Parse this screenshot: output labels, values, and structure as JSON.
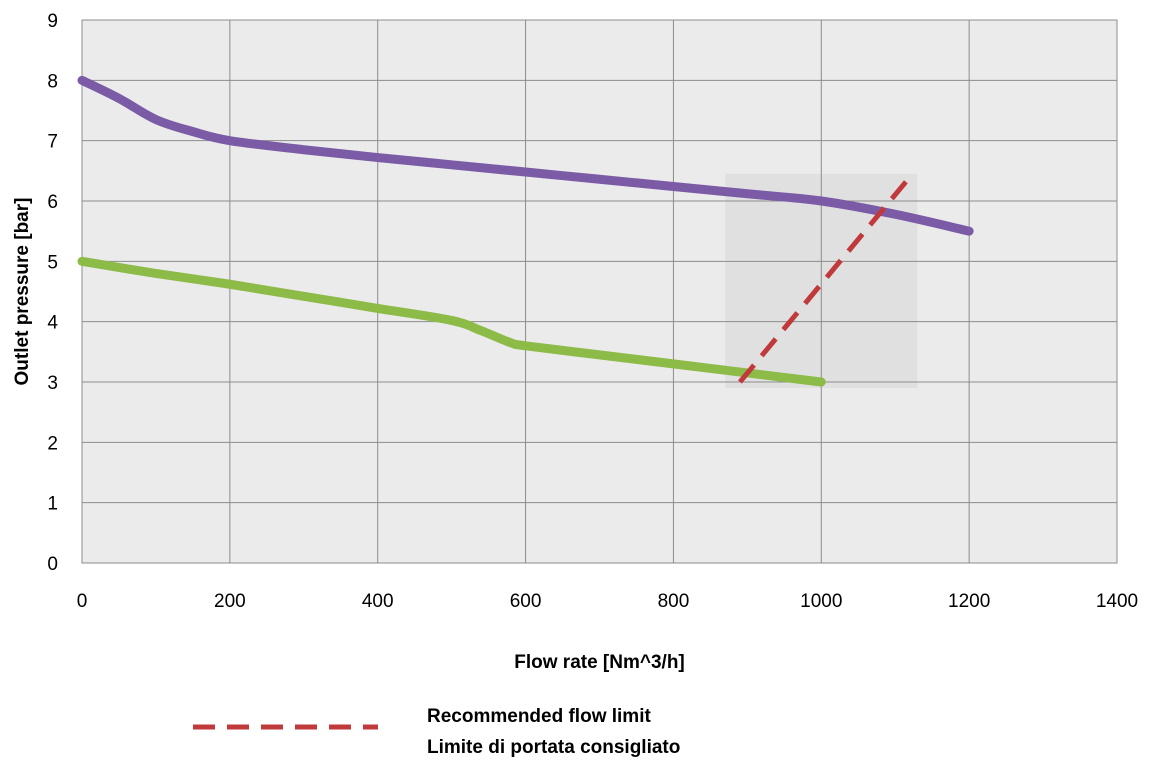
{
  "chart_data": {
    "type": "line",
    "title": "",
    "xlabel": "Flow rate [Nm^3/h]",
    "ylabel": "Outlet pressure [bar]",
    "xlim": [
      0,
      1400
    ],
    "ylim": [
      0,
      9
    ],
    "x_ticks": [
      "0",
      "200",
      "400",
      "600",
      "800",
      "1000",
      "1200",
      "1400"
    ],
    "y_ticks": [
      "0",
      "1",
      "2",
      "3",
      "4",
      "5",
      "6",
      "7",
      "8",
      "9"
    ],
    "grid": true,
    "plot_background": "#ebebeb",
    "series": [
      {
        "color": "#7b5ba6",
        "points": [
          [
            0,
            8.0
          ],
          [
            50,
            7.7
          ],
          [
            100,
            7.35
          ],
          [
            150,
            7.15
          ],
          [
            200,
            7.0
          ],
          [
            300,
            6.85
          ],
          [
            400,
            6.72
          ],
          [
            500,
            6.6
          ],
          [
            600,
            6.48
          ],
          [
            700,
            6.36
          ],
          [
            800,
            6.24
          ],
          [
            900,
            6.12
          ],
          [
            1000,
            6.0
          ],
          [
            1100,
            5.78
          ],
          [
            1200,
            5.5
          ]
        ]
      },
      {
        "color": "#8dbb48",
        "points": [
          [
            0,
            5.0
          ],
          [
            100,
            4.8
          ],
          [
            200,
            4.62
          ],
          [
            300,
            4.42
          ],
          [
            400,
            4.22
          ],
          [
            500,
            4.02
          ],
          [
            540,
            3.85
          ],
          [
            580,
            3.65
          ],
          [
            600,
            3.6
          ],
          [
            700,
            3.45
          ],
          [
            800,
            3.3
          ],
          [
            900,
            3.15
          ],
          [
            1000,
            3.0
          ]
        ]
      },
      {
        "name": "Recommended flow limit",
        "name_line2": "Limite di portata consigliato",
        "color": "#c0393b",
        "dashed": true,
        "points": [
          [
            890,
            3.0
          ],
          [
            1120,
            6.4
          ]
        ]
      }
    ],
    "highlight_region": {
      "x": [
        870,
        1130
      ],
      "y": [
        2.9,
        6.45
      ],
      "color": "#dcdcdc"
    },
    "legend": {
      "position": "bottom-center",
      "line1": "Recommended flow limit",
      "line2": "Limite di portata consigliato",
      "swatch_color": "#c0393b"
    }
  }
}
